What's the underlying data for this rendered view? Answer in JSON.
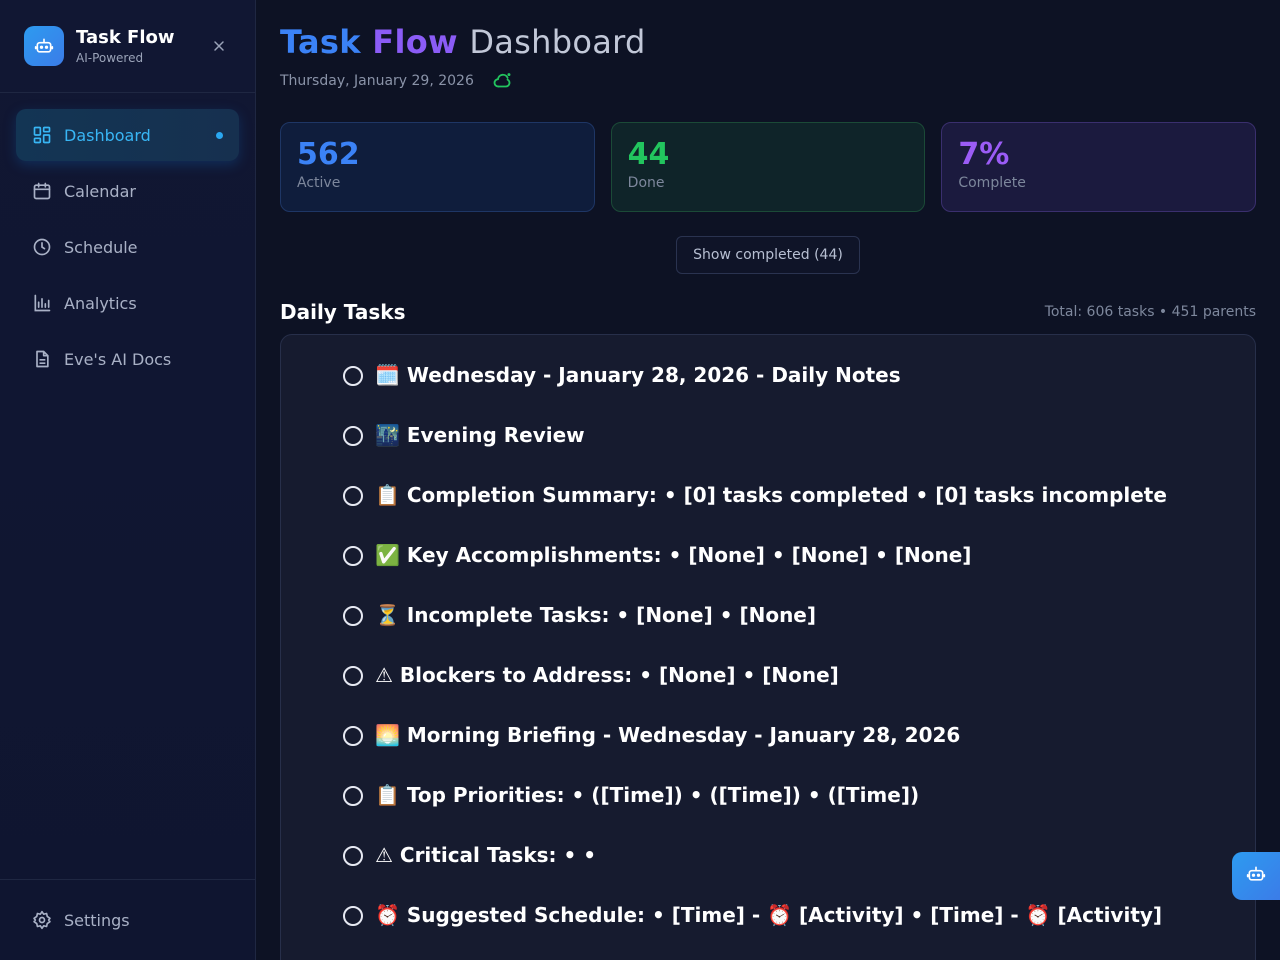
{
  "brand": {
    "title": "Task Flow",
    "subtitle": "AI-Powered",
    "logo_icon": "robot-icon",
    "close_icon": "close-icon"
  },
  "nav": {
    "items": [
      {
        "label": "Dashboard",
        "icon": "dashboard-icon",
        "active": true
      },
      {
        "label": "Calendar",
        "icon": "calendar-icon",
        "active": false
      },
      {
        "label": "Schedule",
        "icon": "clock-icon",
        "active": false
      },
      {
        "label": "Analytics",
        "icon": "bar-chart-icon",
        "active": false
      },
      {
        "label": "Eve's AI Docs",
        "icon": "document-icon",
        "active": false
      }
    ],
    "settings_label": "Settings"
  },
  "header": {
    "title_task": "Task",
    "title_flow": "Flow",
    "title_dashboard": "Dashboard",
    "date": "Thursday, January 29, 2026"
  },
  "stats": {
    "active": {
      "value": "562",
      "label": "Active"
    },
    "done": {
      "value": "44",
      "label": "Done"
    },
    "complete": {
      "value": "7%",
      "label": "Complete"
    }
  },
  "show_completed_label": "Show completed (44)",
  "tasks_section": {
    "title": "Daily Tasks",
    "meta": "Total: 606 tasks • 451 parents"
  },
  "tasks": [
    "🗓️ Wednesday - January 28, 2026 - Daily Notes",
    "🌃 Evening Review",
    "📋 Completion Summary: • [0] tasks completed • [0] tasks incomplete",
    "✅ Key Accomplishments: • [None] • [None] • [None]",
    "⏳ Incomplete Tasks: • [None] • [None]",
    "⚠ Blockers to Address: • [None] • [None]",
    "🌅 Morning Briefing - Wednesday - January 28, 2026",
    "📋 Top Priorities: • ([Time]) • ([Time]) • ([Time])",
    "⚠ Critical Tasks: • •",
    "⏰ Suggested Schedule: • [Time] - ⏰ [Activity] • [Time] - ⏰ [Activity]"
  ],
  "colors": {
    "accent_blue": "#3b82f6",
    "accent_purple": "#8b5cf6",
    "success_green": "#22c55e",
    "nav_active": "#38b6f5"
  }
}
